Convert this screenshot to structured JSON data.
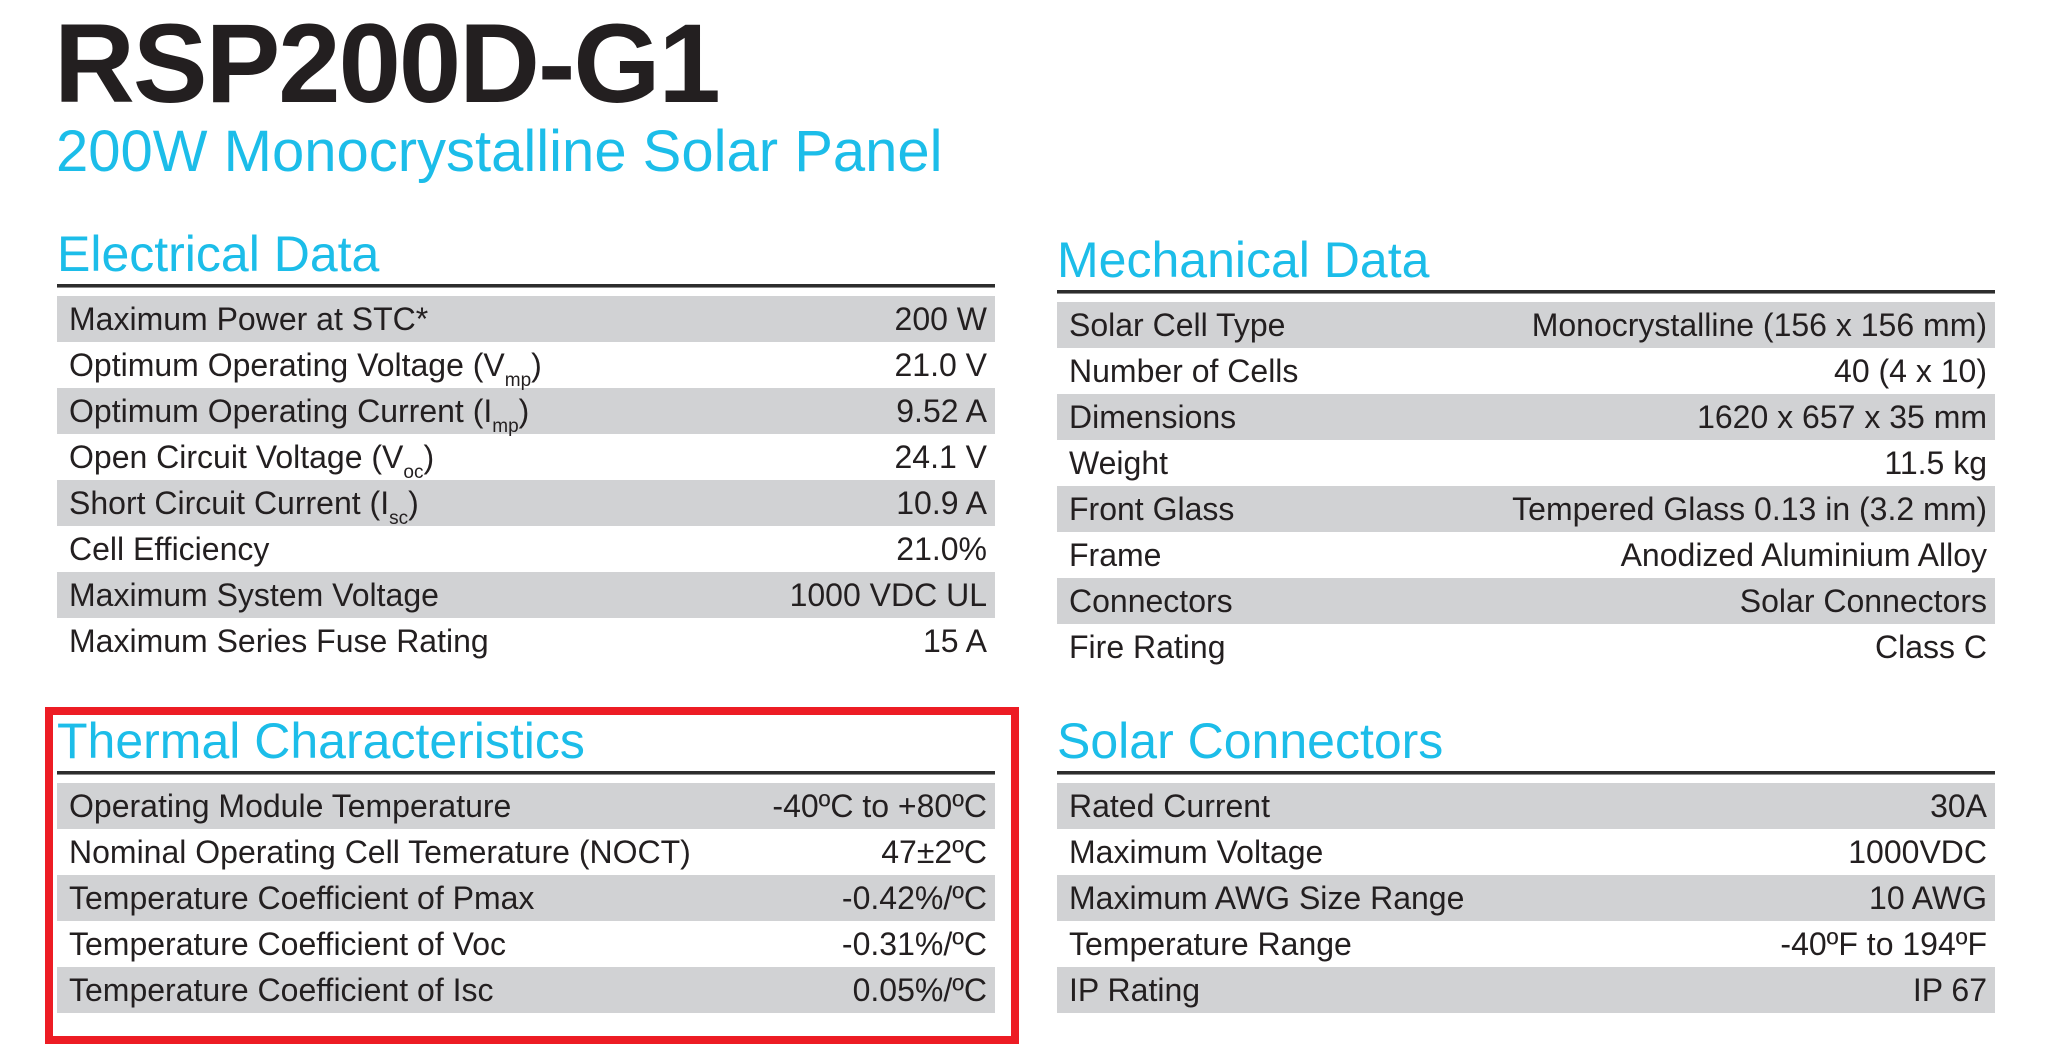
{
  "header": {
    "title": "RSP200D-G1",
    "subtitle": "200W Monocrystalline Solar Panel"
  },
  "colors": {
    "accent": "#1cbde9",
    "text": "#231f20",
    "row_shade": "#d1d2d4",
    "highlight": "#ed1c24"
  },
  "electrical": {
    "title": "Electrical Data",
    "rows": [
      {
        "label": "Maximum Power at STC*",
        "value": "200 W"
      },
      {
        "label": "Optimum Operating Voltage (V",
        "sub": "mp",
        "suffix": ")",
        "value": "21.0 V"
      },
      {
        "label": "Optimum Operating Current (I",
        "sub": "mp",
        "suffix": ")",
        "value": "9.52 A"
      },
      {
        "label": "Open Circuit Voltage (V",
        "sub": "oc",
        "suffix": ")",
        "value": "24.1 V"
      },
      {
        "label": "Short Circuit Current (I",
        "sub": "sc",
        "suffix": ")",
        "value": "10.9 A"
      },
      {
        "label": "Cell Efficiency",
        "value": "21.0%"
      },
      {
        "label": "Maximum System Voltage",
        "value": "1000 VDC UL"
      },
      {
        "label": "Maximum Series Fuse Rating",
        "value": "15 A"
      }
    ]
  },
  "mechanical": {
    "title": "Mechanical Data",
    "rows": [
      {
        "label": "Solar Cell Type",
        "value": "Monocrystalline (156 x 156 mm)"
      },
      {
        "label": "Number of Cells",
        "value": "40 (4 x 10)"
      },
      {
        "label": "Dimensions",
        "value": "1620 x 657 x 35 mm"
      },
      {
        "label": "Weight",
        "value": "11.5 kg"
      },
      {
        "label": "Front Glass",
        "value": "Tempered Glass 0.13 in (3.2 mm)"
      },
      {
        "label": "Frame",
        "value": "Anodized Aluminium Alloy"
      },
      {
        "label": "Connectors",
        "value": "Solar Connectors"
      },
      {
        "label": "Fire Rating",
        "value": "Class C"
      }
    ]
  },
  "thermal": {
    "title": "Thermal Characteristics",
    "highlighted": true,
    "rows": [
      {
        "label": "Operating Module Temperature",
        "value": "-40ºC to +80ºC"
      },
      {
        "label": "Nominal Operating Cell Temerature (NOCT)",
        "value": "47±2ºC"
      },
      {
        "label": "Temperature Coefficient of Pmax",
        "value": "-0.42%/ºC"
      },
      {
        "label": "Temperature Coefficient of Voc",
        "value": "-0.31%/ºC"
      },
      {
        "label": "Temperature Coefficient of Isc",
        "value": "0.05%/ºC"
      }
    ]
  },
  "connectors": {
    "title": "Solar Connectors",
    "rows": [
      {
        "label": "Rated Current",
        "value": "30A"
      },
      {
        "label": "Maximum Voltage",
        "value": "1000VDC"
      },
      {
        "label": "Maximum AWG Size Range",
        "value": "10 AWG"
      },
      {
        "label": "Temperature Range",
        "value": "-40ºF to 194ºF"
      },
      {
        "label": "IP Rating",
        "value": "IP 67"
      }
    ]
  }
}
